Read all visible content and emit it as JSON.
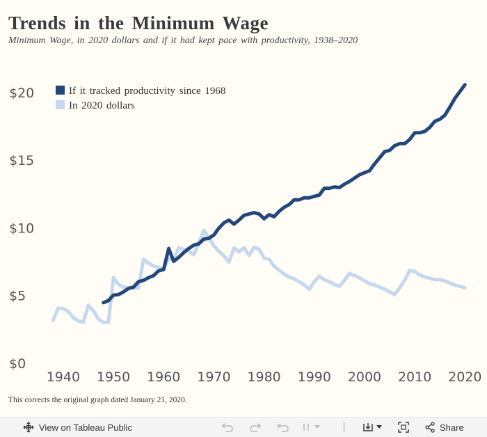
{
  "title": "Trends in the Minimum Wage",
  "subtitle": "Minimum Wage, in 2020 dollars and if it had kept pace with productivity, 1938–2020",
  "footnote": "This corrects the original graph dated January 21, 2020.",
  "toolbar": {
    "view_label": "View on Tableau Public",
    "share_label": "Share",
    "icons": [
      "move-icon",
      "undo-icon",
      "redo-icon",
      "revert-icon",
      "download-icon",
      "fullscreen-icon",
      "share-icon"
    ]
  },
  "colors": {
    "productivity": "#24477a",
    "dollars2020": "#c5d8ee",
    "background": "#fffdf6"
  },
  "chart_data": {
    "type": "line",
    "title": "Trends in the Minimum Wage",
    "xlabel": "",
    "ylabel": "",
    "xlim": [
      1936,
      2023
    ],
    "ylim": [
      0,
      22
    ],
    "x_ticks": [
      1940,
      1950,
      1960,
      1970,
      1980,
      1990,
      2000,
      2010,
      2020
    ],
    "x_tick_labels": [
      "1940",
      "1950",
      "1960",
      "1970",
      "1980",
      "1990",
      "2000",
      "2010",
      "2020"
    ],
    "y_ticks": [
      0,
      5,
      10,
      15,
      20
    ],
    "y_tick_labels": [
      "$0",
      "$5",
      "$10",
      "$15",
      "$20"
    ],
    "legend_position": "top-left",
    "grid": false,
    "series": [
      {
        "name": "If it tracked productivity since 1968",
        "color": "#24477a",
        "points": [
          [
            1948,
            5.4
          ],
          [
            1949,
            5.55
          ],
          [
            1950,
            5.95
          ],
          [
            1951,
            6.0
          ],
          [
            1952,
            6.2
          ],
          [
            1953,
            6.45
          ],
          [
            1954,
            6.55
          ],
          [
            1955,
            6.95
          ],
          [
            1956,
            7.05
          ],
          [
            1957,
            7.25
          ],
          [
            1958,
            7.4
          ],
          [
            1959,
            7.75
          ],
          [
            1960,
            7.85
          ],
          [
            1961,
            9.4
          ],
          [
            1962,
            8.45
          ],
          [
            1963,
            8.75
          ],
          [
            1964,
            9.1
          ],
          [
            1965,
            9.4
          ],
          [
            1966,
            9.65
          ],
          [
            1967,
            9.75
          ],
          [
            1968,
            10.1
          ],
          [
            1969,
            10.15
          ],
          [
            1970,
            10.4
          ],
          [
            1971,
            10.9
          ],
          [
            1972,
            11.3
          ],
          [
            1973,
            11.5
          ],
          [
            1974,
            11.2
          ],
          [
            1975,
            11.5
          ],
          [
            1976,
            11.85
          ],
          [
            1977,
            11.95
          ],
          [
            1978,
            12.05
          ],
          [
            1979,
            11.95
          ],
          [
            1980,
            11.6
          ],
          [
            1981,
            11.9
          ],
          [
            1982,
            11.75
          ],
          [
            1983,
            12.15
          ],
          [
            1984,
            12.45
          ],
          [
            1985,
            12.65
          ],
          [
            1986,
            13.0
          ],
          [
            1987,
            13.0
          ],
          [
            1988,
            13.15
          ],
          [
            1989,
            13.15
          ],
          [
            1990,
            13.25
          ],
          [
            1991,
            13.35
          ],
          [
            1992,
            13.85
          ],
          [
            1993,
            13.85
          ],
          [
            1994,
            13.95
          ],
          [
            1995,
            13.9
          ],
          [
            1996,
            14.15
          ],
          [
            1997,
            14.35
          ],
          [
            1998,
            14.6
          ],
          [
            1999,
            14.85
          ],
          [
            2000,
            15.0
          ],
          [
            2001,
            15.15
          ],
          [
            2002,
            15.65
          ],
          [
            2003,
            16.1
          ],
          [
            2004,
            16.55
          ],
          [
            2005,
            16.65
          ],
          [
            2006,
            17.0
          ],
          [
            2007,
            17.15
          ],
          [
            2008,
            17.15
          ],
          [
            2009,
            17.45
          ],
          [
            2010,
            17.95
          ],
          [
            2011,
            17.95
          ],
          [
            2012,
            18.05
          ],
          [
            2013,
            18.35
          ],
          [
            2014,
            18.8
          ],
          [
            2015,
            18.95
          ],
          [
            2016,
            19.25
          ],
          [
            2017,
            19.85
          ],
          [
            2018,
            20.5
          ],
          [
            2019,
            21.0
          ],
          [
            2020,
            21.5
          ]
        ]
      },
      {
        "name": "In 2020 dollars",
        "color": "#c5d8ee",
        "points": [
          [
            1938,
            4.1
          ],
          [
            1939,
            5.0
          ],
          [
            1940,
            4.95
          ],
          [
            1941,
            4.75
          ],
          [
            1942,
            4.3
          ],
          [
            1943,
            4.05
          ],
          [
            1944,
            3.95
          ],
          [
            1945,
            5.2
          ],
          [
            1946,
            4.8
          ],
          [
            1947,
            4.2
          ],
          [
            1948,
            3.95
          ],
          [
            1949,
            3.95
          ],
          [
            1950,
            7.25
          ],
          [
            1951,
            6.75
          ],
          [
            1952,
            6.55
          ],
          [
            1953,
            6.5
          ],
          [
            1954,
            6.45
          ],
          [
            1955,
            6.5
          ],
          [
            1956,
            8.6
          ],
          [
            1957,
            8.3
          ],
          [
            1958,
            8.1
          ],
          [
            1959,
            8.0
          ],
          [
            1960,
            7.85
          ],
          [
            1961,
            8.65
          ],
          [
            1962,
            8.55
          ],
          [
            1963,
            9.45
          ],
          [
            1964,
            9.35
          ],
          [
            1965,
            9.2
          ],
          [
            1966,
            8.95
          ],
          [
            1967,
            9.8
          ],
          [
            1968,
            10.75
          ],
          [
            1969,
            10.2
          ],
          [
            1970,
            9.6
          ],
          [
            1971,
            9.2
          ],
          [
            1972,
            8.85
          ],
          [
            1973,
            8.4
          ],
          [
            1974,
            9.45
          ],
          [
            1975,
            9.15
          ],
          [
            1976,
            9.45
          ],
          [
            1977,
            8.9
          ],
          [
            1978,
            9.5
          ],
          [
            1979,
            9.35
          ],
          [
            1980,
            8.7
          ],
          [
            1981,
            8.6
          ],
          [
            1982,
            8.1
          ],
          [
            1983,
            7.8
          ],
          [
            1984,
            7.5
          ],
          [
            1985,
            7.3
          ],
          [
            1986,
            7.15
          ],
          [
            1987,
            6.95
          ],
          [
            1988,
            6.7
          ],
          [
            1989,
            6.4
          ],
          [
            1990,
            6.95
          ],
          [
            1991,
            7.35
          ],
          [
            1992,
            7.1
          ],
          [
            1993,
            6.95
          ],
          [
            1994,
            6.75
          ],
          [
            1995,
            6.6
          ],
          [
            1996,
            7.05
          ],
          [
            1997,
            7.55
          ],
          [
            1998,
            7.4
          ],
          [
            1999,
            7.25
          ],
          [
            2000,
            7.0
          ],
          [
            2001,
            6.8
          ],
          [
            2002,
            6.7
          ],
          [
            2003,
            6.55
          ],
          [
            2004,
            6.4
          ],
          [
            2005,
            6.2
          ],
          [
            2006,
            6.0
          ],
          [
            2007,
            6.5
          ],
          [
            2008,
            7.05
          ],
          [
            2009,
            7.8
          ],
          [
            2010,
            7.7
          ],
          [
            2011,
            7.45
          ],
          [
            2012,
            7.3
          ],
          [
            2013,
            7.2
          ],
          [
            2014,
            7.1
          ],
          [
            2015,
            7.1
          ],
          [
            2016,
            7.0
          ],
          [
            2017,
            6.85
          ],
          [
            2018,
            6.7
          ],
          [
            2019,
            6.6
          ],
          [
            2020,
            6.5
          ]
        ]
      }
    ]
  }
}
